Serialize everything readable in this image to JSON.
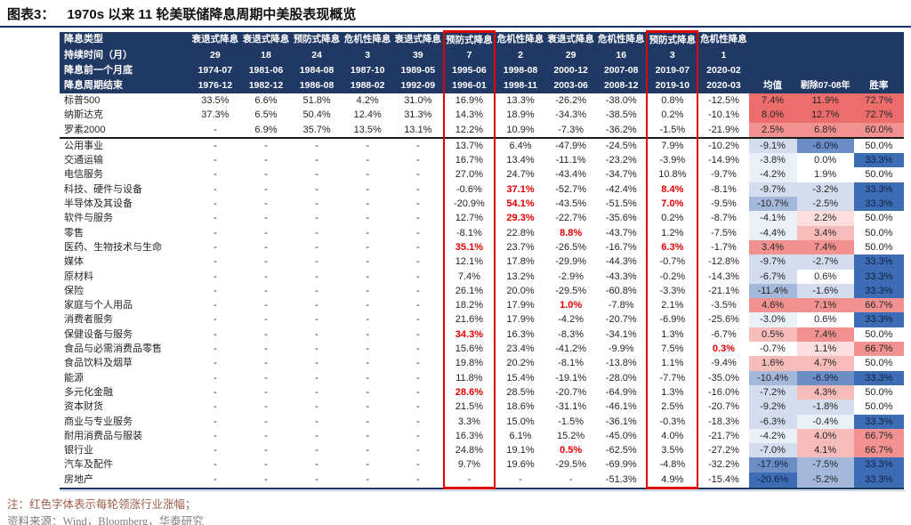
{
  "title": {
    "prefix": "图表3：",
    "text": "1970s 以来 11 轮美联储降息周期中美股表现概览"
  },
  "colors": {
    "header_bg": "#1f3864",
    "accent_red_text": "#e60000",
    "highlight_box": "#e00000",
    "heat_palette": {
      "r3": "#ed6d6d",
      "r2": "#f29290",
      "r1": "#f6bcba",
      "r0": "#fbdfde",
      "w": "#ffffff",
      "b0": "#eaf0f8",
      "b1": "#d3ddee",
      "b2": "#a3b8da",
      "b3": "#6c8ec5",
      "b4": "#3d6cb4"
    }
  },
  "table": {
    "header": {
      "row_labels": [
        "降息类型",
        "持续时间（月）",
        "降息前一个月底",
        "降息周期结束"
      ],
      "summary_cols": [
        "均值",
        "剔除07-08年",
        "胜率"
      ],
      "cycles": [
        {
          "type": "衰退式降息",
          "duration": "29",
          "start": "1974-07",
          "end": "1976-12",
          "highlight": false
        },
        {
          "type": "衰退式降息",
          "duration": "18",
          "start": "1981-06",
          "end": "1982-12",
          "highlight": false
        },
        {
          "type": "预防式降息",
          "duration": "24",
          "start": "1984-08",
          "end": "1986-08",
          "highlight": false
        },
        {
          "type": "危机性降息",
          "duration": "3",
          "start": "1987-10",
          "end": "1988-02",
          "highlight": false
        },
        {
          "type": "衰退式降息",
          "duration": "39",
          "start": "1989-05",
          "end": "1992-09",
          "highlight": false
        },
        {
          "type": "预防式降息",
          "duration": "7",
          "start": "1995-06",
          "end": "1996-01",
          "highlight": true
        },
        {
          "type": "危机性降息",
          "duration": "2",
          "start": "1998-08",
          "end": "1998-11",
          "highlight": false
        },
        {
          "type": "衰退式降息",
          "duration": "29",
          "start": "2000-12",
          "end": "2003-06",
          "highlight": false
        },
        {
          "type": "危机性降息",
          "duration": "16",
          "start": "2007-08",
          "end": "2008-12",
          "highlight": false
        },
        {
          "type": "预防式降息",
          "duration": "3",
          "start": "2019-07",
          "end": "2019-10",
          "highlight": true
        },
        {
          "type": "危机性降息",
          "duration": "1",
          "start": "2020-02",
          "end": "2020-03",
          "highlight": false
        }
      ]
    },
    "index_rows": [
      {
        "label": "标普500",
        "values": [
          "33.5%",
          "6.6%",
          "51.8%",
          "4.2%",
          "31.0%",
          "16.9%",
          "13.3%",
          "-26.2%",
          "-38.0%",
          "0.8%",
          "-12.5%"
        ],
        "red": [],
        "summary": [
          [
            "7.4%",
            "r3"
          ],
          [
            "11.9%",
            "r3"
          ],
          [
            "72.7%",
            "r3"
          ]
        ]
      },
      {
        "label": "纳斯达克",
        "values": [
          "37.3%",
          "6.5%",
          "50.4%",
          "12.4%",
          "31.3%",
          "14.3%",
          "18.9%",
          "-34.3%",
          "-38.5%",
          "0.2%",
          "-10.1%"
        ],
        "red": [],
        "summary": [
          [
            "8.0%",
            "r3"
          ],
          [
            "12.7%",
            "r3"
          ],
          [
            "72.7%",
            "r3"
          ]
        ]
      },
      {
        "label": "罗素2000",
        "values": [
          "-",
          "6.9%",
          "35.7%",
          "13.5%",
          "13.1%",
          "12.2%",
          "10.9%",
          "-7.3%",
          "-36.2%",
          "-1.5%",
          "-21.9%"
        ],
        "red": [],
        "summary": [
          [
            "2.5%",
            "r2"
          ],
          [
            "6.8%",
            "r2"
          ],
          [
            "60.0%",
            "r2"
          ]
        ]
      }
    ],
    "sector_rows": [
      {
        "label": "公用事业",
        "values": [
          "-",
          "-",
          "-",
          "-",
          "-",
          "13.7%",
          "6.4%",
          "-47.9%",
          "-24.5%",
          "7.9%",
          "-10.2%"
        ],
        "red": [],
        "summary": [
          [
            "-9.1%",
            "b1"
          ],
          [
            "-6.0%",
            "b3"
          ],
          [
            "50.0%",
            "w"
          ]
        ]
      },
      {
        "label": "交通运输",
        "values": [
          "-",
          "-",
          "-",
          "-",
          "-",
          "16.7%",
          "13.4%",
          "-11.1%",
          "-23.2%",
          "-3.9%",
          "-14.9%"
        ],
        "red": [],
        "summary": [
          [
            "-3.8%",
            "b0"
          ],
          [
            "0.0%",
            "w"
          ],
          [
            "33.3%",
            "b4"
          ]
        ]
      },
      {
        "label": "电信服务",
        "values": [
          "-",
          "-",
          "-",
          "-",
          "-",
          "27.0%",
          "24.7%",
          "-43.4%",
          "-34.7%",
          "10.8%",
          "-9.7%"
        ],
        "red": [],
        "summary": [
          [
            "-4.2%",
            "b0"
          ],
          [
            "1.9%",
            "w"
          ],
          [
            "50.0%",
            "w"
          ]
        ]
      },
      {
        "label": "科技、硬件与设备",
        "values": [
          "-",
          "-",
          "-",
          "-",
          "-",
          "-0.6%",
          "37.1%",
          "-52.7%",
          "-42.4%",
          "8.4%",
          "-8.1%"
        ],
        "red": [
          6,
          9
        ],
        "summary": [
          [
            "-9.7%",
            "b1"
          ],
          [
            "-3.2%",
            "b1"
          ],
          [
            "33.3%",
            "b4"
          ]
        ]
      },
      {
        "label": "半导体及其设备",
        "values": [
          "-",
          "-",
          "-",
          "-",
          "-",
          "-20.9%",
          "54.1%",
          "-43.5%",
          "-51.5%",
          "7.0%",
          "-9.5%"
        ],
        "red": [
          6,
          9
        ],
        "summary": [
          [
            "-10.7%",
            "b2"
          ],
          [
            "-2.5%",
            "b1"
          ],
          [
            "33.3%",
            "b4"
          ]
        ]
      },
      {
        "label": "软件与服务",
        "values": [
          "-",
          "-",
          "-",
          "-",
          "-",
          "12.7%",
          "29.3%",
          "-22.7%",
          "-35.6%",
          "0.2%",
          "-8.7%"
        ],
        "red": [
          6
        ],
        "summary": [
          [
            "-4.1%",
            "b0"
          ],
          [
            "2.2%",
            "r0"
          ],
          [
            "50.0%",
            "w"
          ]
        ]
      },
      {
        "label": "零售",
        "values": [
          "-",
          "-",
          "-",
          "-",
          "-",
          "-8.1%",
          "22.8%",
          "8.8%",
          "-43.7%",
          "1.2%",
          "-7.5%"
        ],
        "red": [
          7
        ],
        "summary": [
          [
            "-4.4%",
            "b0"
          ],
          [
            "3.4%",
            "r1"
          ],
          [
            "50.0%",
            "w"
          ]
        ]
      },
      {
        "label": "医药、生物技术与生命",
        "values": [
          "-",
          "-",
          "-",
          "-",
          "-",
          "35.1%",
          "23.7%",
          "-26.5%",
          "-16.7%",
          "6.3%",
          "-1.7%"
        ],
        "red": [
          5,
          9
        ],
        "summary": [
          [
            "3.4%",
            "r2"
          ],
          [
            "7.4%",
            "r2"
          ],
          [
            "50.0%",
            "w"
          ]
        ]
      },
      {
        "label": "媒体",
        "values": [
          "-",
          "-",
          "-",
          "-",
          "-",
          "12.1%",
          "17.8%",
          "-29.9%",
          "-44.3%",
          "-0.7%",
          "-12.8%"
        ],
        "red": [],
        "summary": [
          [
            "-9.7%",
            "b1"
          ],
          [
            "-2.7%",
            "b1"
          ],
          [
            "33.3%",
            "b4"
          ]
        ]
      },
      {
        "label": "原材料",
        "values": [
          "-",
          "-",
          "-",
          "-",
          "-",
          "7.4%",
          "13.2%",
          "-2.9%",
          "-43.3%",
          "-0.2%",
          "-14.3%"
        ],
        "red": [],
        "summary": [
          [
            "-6.7%",
            "b1"
          ],
          [
            "0.6%",
            "w"
          ],
          [
            "33.3%",
            "b4"
          ]
        ]
      },
      {
        "label": "保险",
        "values": [
          "-",
          "-",
          "-",
          "-",
          "-",
          "26.1%",
          "20.0%",
          "-29.5%",
          "-60.8%",
          "-3.3%",
          "-21.1%"
        ],
        "red": [],
        "summary": [
          [
            "-11.4%",
            "b2"
          ],
          [
            "-1.6%",
            "b1"
          ],
          [
            "33.3%",
            "b4"
          ]
        ]
      },
      {
        "label": "家庭与个人用品",
        "values": [
          "-",
          "-",
          "-",
          "-",
          "-",
          "18.2%",
          "17.9%",
          "1.0%",
          "-7.8%",
          "2.1%",
          "-3.5%"
        ],
        "red": [
          7
        ],
        "summary": [
          [
            "4.6%",
            "r2"
          ],
          [
            "7.1%",
            "r2"
          ],
          [
            "66.7%",
            "r2"
          ]
        ]
      },
      {
        "label": "消费者服务",
        "values": [
          "-",
          "-",
          "-",
          "-",
          "-",
          "21.6%",
          "17.9%",
          "-4.2%",
          "-20.7%",
          "-6.9%",
          "-25.6%"
        ],
        "red": [],
        "summary": [
          [
            "-3.0%",
            "b0"
          ],
          [
            "0.6%",
            "w"
          ],
          [
            "33.3%",
            "b4"
          ]
        ]
      },
      {
        "label": "保健设备与服务",
        "values": [
          "-",
          "-",
          "-",
          "-",
          "-",
          "34.3%",
          "16.3%",
          "-8.3%",
          "-34.1%",
          "1.3%",
          "-6.7%"
        ],
        "red": [
          5
        ],
        "summary": [
          [
            "0.5%",
            "r1"
          ],
          [
            "7.4%",
            "r2"
          ],
          [
            "50.0%",
            "w"
          ]
        ]
      },
      {
        "label": "食品与必需消费品零售",
        "values": [
          "-",
          "-",
          "-",
          "-",
          "-",
          "15.6%",
          "23.4%",
          "-41.2%",
          "-9.9%",
          "7.5%",
          "0.3%"
        ],
        "red": [
          10
        ],
        "summary": [
          [
            "-0.7%",
            "w"
          ],
          [
            "1.1%",
            "r0"
          ],
          [
            "66.7%",
            "r2"
          ]
        ]
      },
      {
        "label": "食品饮料及烟草",
        "values": [
          "-",
          "-",
          "-",
          "-",
          "-",
          "19.8%",
          "20.2%",
          "-8.1%",
          "-13.8%",
          "1.1%",
          "-9.4%"
        ],
        "red": [],
        "summary": [
          [
            "1.6%",
            "r1"
          ],
          [
            "4.7%",
            "r1"
          ],
          [
            "50.0%",
            "w"
          ]
        ]
      },
      {
        "label": "能源",
        "values": [
          "-",
          "-",
          "-",
          "-",
          "-",
          "11.8%",
          "15.4%",
          "-19.1%",
          "-28.0%",
          "-7.7%",
          "-35.0%"
        ],
        "red": [],
        "summary": [
          [
            "-10.4%",
            "b2"
          ],
          [
            "-6.9%",
            "b3"
          ],
          [
            "33.3%",
            "b4"
          ]
        ]
      },
      {
        "label": "多元化金融",
        "values": [
          "-",
          "-",
          "-",
          "-",
          "-",
          "28.6%",
          "28.5%",
          "-20.7%",
          "-64.9%",
          "1.3%",
          "-16.0%"
        ],
        "red": [
          5
        ],
        "summary": [
          [
            "-7.2%",
            "b1"
          ],
          [
            "4.3%",
            "r1"
          ],
          [
            "50.0%",
            "w"
          ]
        ]
      },
      {
        "label": "资本财货",
        "values": [
          "-",
          "-",
          "-",
          "-",
          "-",
          "21.5%",
          "18.6%",
          "-31.1%",
          "-46.1%",
          "2.5%",
          "-20.7%"
        ],
        "red": [],
        "summary": [
          [
            "-9.2%",
            "b1"
          ],
          [
            "-1.8%",
            "b1"
          ],
          [
            "50.0%",
            "w"
          ]
        ]
      },
      {
        "label": "商业与专业服务",
        "values": [
          "-",
          "-",
          "-",
          "-",
          "-",
          "3.3%",
          "15.0%",
          "-1.5%",
          "-36.1%",
          "-0.3%",
          "-18.3%"
        ],
        "red": [],
        "summary": [
          [
            "-6.3%",
            "b1"
          ],
          [
            "-0.4%",
            "b0"
          ],
          [
            "33.3%",
            "b4"
          ]
        ]
      },
      {
        "label": "耐用消费品与服装",
        "values": [
          "-",
          "-",
          "-",
          "-",
          "-",
          "16.3%",
          "6.1%",
          "15.2%",
          "-45.0%",
          "4.0%",
          "-21.7%"
        ],
        "red": [],
        "summary": [
          [
            "-4.2%",
            "b0"
          ],
          [
            "4.0%",
            "r1"
          ],
          [
            "66.7%",
            "r2"
          ]
        ]
      },
      {
        "label": "银行业",
        "values": [
          "-",
          "-",
          "-",
          "-",
          "-",
          "24.8%",
          "19.1%",
          "0.5%",
          "-62.5%",
          "3.5%",
          "-27.2%"
        ],
        "red": [
          7
        ],
        "summary": [
          [
            "-7.0%",
            "b1"
          ],
          [
            "4.1%",
            "r1"
          ],
          [
            "66.7%",
            "r2"
          ]
        ]
      },
      {
        "label": "汽车及配件",
        "values": [
          "-",
          "-",
          "-",
          "-",
          "-",
          "9.7%",
          "19.6%",
          "-29.5%",
          "-69.9%",
          "-4.8%",
          "-32.2%"
        ],
        "red": [],
        "summary": [
          [
            "-17.9%",
            "b3"
          ],
          [
            "-7.5%",
            "b2"
          ],
          [
            "33.3%",
            "b4"
          ]
        ]
      },
      {
        "label": "房地产",
        "values": [
          "-",
          "-",
          "-",
          "-",
          "-",
          "-",
          "-",
          "-",
          "-51.3%",
          "4.9%",
          "-15.4%"
        ],
        "red": [],
        "summary": [
          [
            "-20.6%",
            "b4"
          ],
          [
            "-5.2%",
            "b2"
          ],
          [
            "33.3%",
            "b4"
          ]
        ]
      }
    ]
  },
  "notes": {
    "legend": "注：红色字体表示每轮领涨行业涨幅；",
    "source": "资料来源：Wind，Bloomberg，华泰研究"
  }
}
